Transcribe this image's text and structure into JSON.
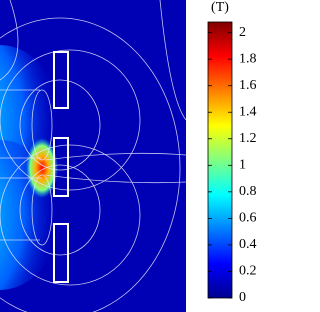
{
  "chart_data": {
    "type": "heatmap",
    "colormap": "jet",
    "colorbar_label": "(T)",
    "clim": [
      0,
      2.08
    ],
    "cticks": [
      0,
      0.2,
      0.4,
      0.6,
      0.8,
      1,
      1.2,
      1.4,
      1.6,
      1.8,
      2
    ]
  }
}
